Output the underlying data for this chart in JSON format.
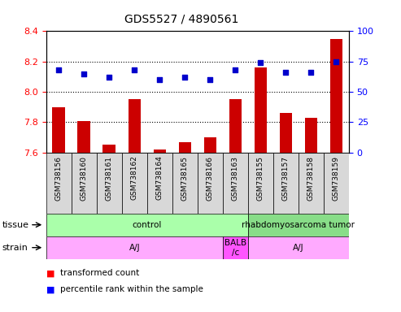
{
  "title": "GDS5527 / 4890561",
  "samples": [
    "GSM738156",
    "GSM738160",
    "GSM738161",
    "GSM738162",
    "GSM738164",
    "GSM738165",
    "GSM738166",
    "GSM738163",
    "GSM738155",
    "GSM738157",
    "GSM738158",
    "GSM738159"
  ],
  "bar_values": [
    7.9,
    7.81,
    7.65,
    7.95,
    7.62,
    7.67,
    7.7,
    7.95,
    8.16,
    7.86,
    7.83,
    8.35
  ],
  "scatter_pct": [
    68,
    65,
    62,
    68,
    60,
    62,
    60,
    68,
    74,
    66,
    66,
    75
  ],
  "bar_color": "#cc0000",
  "scatter_color": "#0000cc",
  "ylim_left": [
    7.6,
    8.4
  ],
  "ylim_right": [
    0,
    100
  ],
  "yticks_left": [
    7.6,
    7.8,
    8.0,
    8.2,
    8.4
  ],
  "yticks_right": [
    0,
    25,
    50,
    75,
    100
  ],
  "grid_values": [
    7.8,
    8.0,
    8.2
  ],
  "tissue_groups": [
    {
      "label": "control",
      "start": 0,
      "end": 8,
      "color": "#aaffaa"
    },
    {
      "label": "rhabdomyosarcoma tumor",
      "start": 8,
      "end": 12,
      "color": "#88dd88"
    }
  ],
  "strain_groups": [
    {
      "label": "A/J",
      "start": 0,
      "end": 7,
      "color": "#ffaaff"
    },
    {
      "label": "BALB\n/c",
      "start": 7,
      "end": 8,
      "color": "#ff55ff"
    },
    {
      "label": "A/J",
      "start": 8,
      "end": 12,
      "color": "#ffaaff"
    }
  ],
  "bar_baseline": 7.6,
  "xtick_bg": "#d8d8d8"
}
